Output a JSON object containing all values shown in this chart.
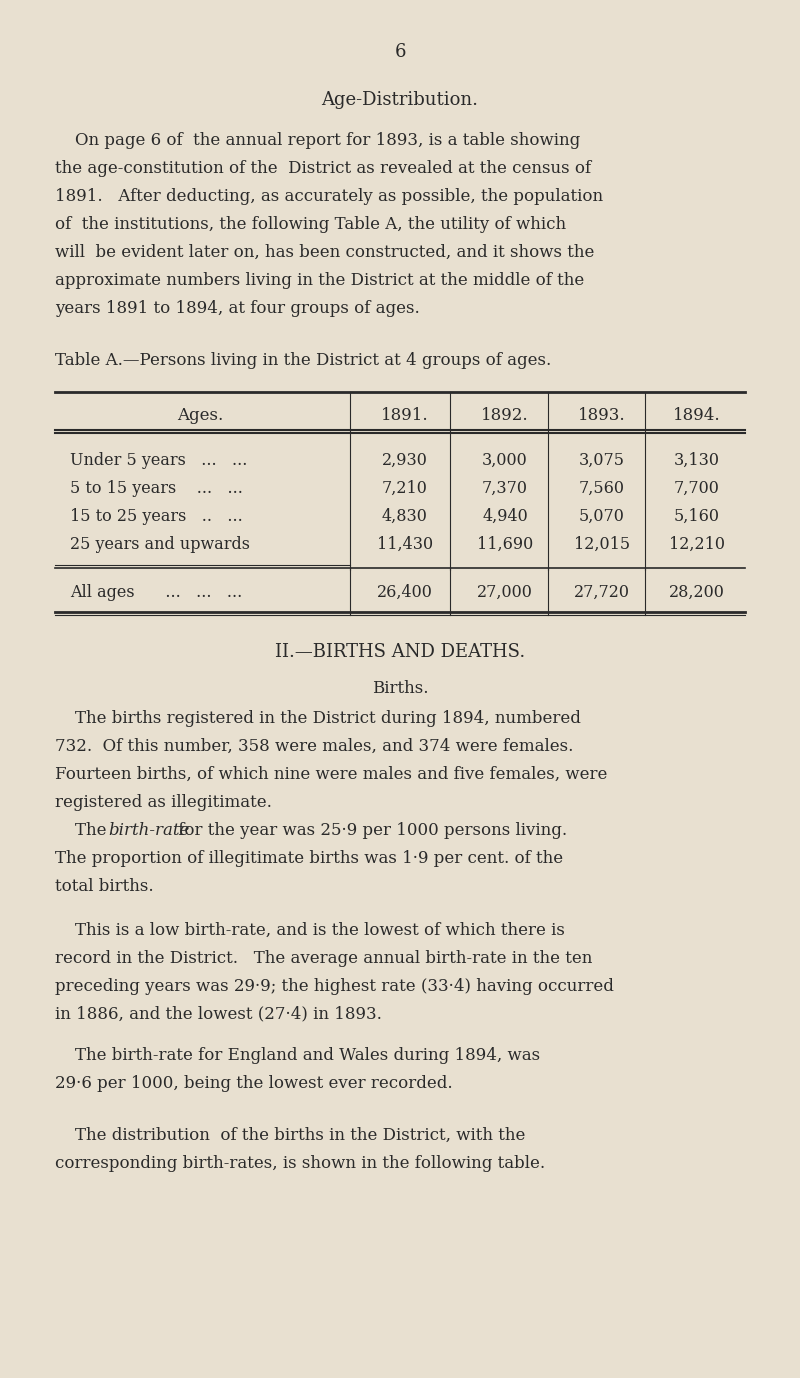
{
  "background_color": "#e8e0d0",
  "text_color": "#2a2a2a",
  "page_number": "6",
  "section_title": "Age-Distribution.",
  "intro_paragraph": "On page 6 of  the annual report for 1893, is a table showing the age-constitution of the District as revealed at the census of 1891.   After deducting, as accurately as possible, the population of  the institutions, the following Table A, the utility of which will  be evident later on, has been constructed, and it shows the approximate numbers living in the District at the middle of the years 1891 to 1894, at four groups of ages.",
  "table_caption": "Table A.—Persons living in the District at 4 groups of ages.",
  "table_headers": [
    "Ages.",
    "1891.",
    "1892.",
    "1893.",
    "1894."
  ],
  "table_rows": [
    [
      "Under 5 years   ...   ...",
      "2,930",
      "3,000",
      "3,075",
      "3,130"
    ],
    [
      "5 to 15 years    ...   ...",
      "7,210",
      "7,370",
      "7,560",
      "7,700"
    ],
    [
      "15 to 25 years   ..   ...",
      "4,830",
      "4,940",
      "5,070",
      "5,160"
    ],
    [
      "25 years and upwards",
      "11,430",
      "11,690",
      "12,015",
      "12,210"
    ]
  ],
  "table_total_row": [
    "All ages      ...   ...   ...",
    "26,400",
    "27,000",
    "27,720",
    "28,200"
  ],
  "section2_title": "II.—BIRTHS AND DEATHS.",
  "births_subtitle": "Births.",
  "para1": "The births registered in the District during 1894, numbered 732.  Of this number, 358 were males, and 374 were females. Fourteen births, of which nine were males and five females, were registered as illegitimate.",
  "para2_italic_part": "birth-rate",
  "para2": "The birth-rate for the year was 25·9 per 1000 persons living. The proportion of illegitimate births was 1·9 per cent. of the total births.",
  "para3": "This is a low birth-rate, and is the lowest of which there is record in the District.   The average annual birth-rate in the ten preceding years was 29·9; the highest rate (33·4) having occurred in 1886, and the lowest (27·4) in 1893.",
  "para4": "The birth-rate for England and Wales during 1894, was 29·6 per 1000, being the lowest ever recorded.",
  "para5": "The distribution  of the births in the District, with the corresponding birth-rates, is shown in the following table."
}
